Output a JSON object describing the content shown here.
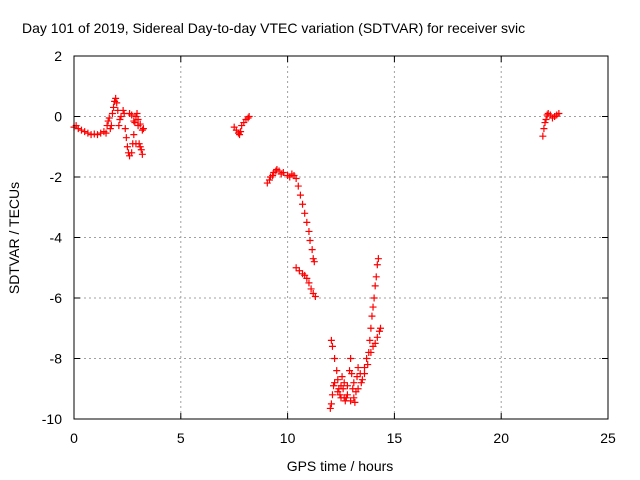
{
  "chart_data": {
    "type": "scatter",
    "title": "Day 101 of 2019, Sidereal Day-to-day VTEC variation (SDTVAR) for receiver svic",
    "xlabel": "GPS time / hours",
    "ylabel": "SDTVAR / TECUs",
    "xlim": [
      0,
      25
    ],
    "ylim": [
      -10,
      2
    ],
    "xticks": [
      "0",
      "5",
      "10",
      "15",
      "20",
      "25"
    ],
    "yticks": [
      "2",
      "0",
      "-2",
      "-4",
      "-6",
      "-8",
      "-10"
    ],
    "grid": true,
    "marker": "+",
    "color": "#ff0000",
    "segments": [
      {
        "name": "segment-1",
        "points": [
          [
            0.0,
            -0.35
          ],
          [
            0.1,
            -0.3
          ],
          [
            0.2,
            -0.4
          ],
          [
            0.35,
            -0.45
          ],
          [
            0.5,
            -0.5
          ],
          [
            0.65,
            -0.55
          ],
          [
            0.8,
            -0.6
          ],
          [
            0.95,
            -0.58
          ],
          [
            1.1,
            -0.6
          ],
          [
            1.25,
            -0.55
          ],
          [
            1.4,
            -0.5
          ],
          [
            1.5,
            -0.55
          ],
          [
            1.55,
            -0.3
          ],
          [
            1.6,
            -0.15
          ],
          [
            1.65,
            -0.05
          ],
          [
            1.7,
            -0.4
          ],
          [
            1.75,
            -0.3
          ],
          [
            1.8,
            0.1
          ],
          [
            1.85,
            0.3
          ],
          [
            1.9,
            0.5
          ],
          [
            1.95,
            0.6
          ],
          [
            2.0,
            0.45
          ],
          [
            2.05,
            0.2
          ],
          [
            2.1,
            -0.3
          ],
          [
            2.15,
            -0.1
          ],
          [
            2.2,
            0.0
          ],
          [
            2.3,
            0.2
          ],
          [
            2.35,
            0.1
          ],
          [
            2.4,
            -0.4
          ],
          [
            2.45,
            -0.7
          ],
          [
            2.5,
            -1.0
          ],
          [
            2.55,
            -1.2
          ],
          [
            2.6,
            -1.3
          ],
          [
            2.7,
            -1.2
          ],
          [
            2.75,
            -0.9
          ],
          [
            2.8,
            -0.6
          ],
          [
            2.85,
            -0.2
          ],
          [
            2.9,
            0.0
          ],
          [
            2.95,
            0.1
          ],
          [
            3.0,
            -0.1
          ],
          [
            3.05,
            -0.9
          ],
          [
            3.1,
            -1.0
          ],
          [
            3.15,
            -1.1
          ],
          [
            3.2,
            -1.25
          ],
          [
            3.25,
            -0.4
          ],
          [
            2.6,
            0.1
          ],
          [
            2.7,
            0.05
          ],
          [
            2.8,
            -0.15
          ],
          [
            2.9,
            -0.9
          ],
          [
            3.0,
            -0.3
          ],
          [
            3.1,
            -0.25
          ],
          [
            3.2,
            -0.45
          ]
        ]
      },
      {
        "name": "segment-2",
        "points": [
          [
            7.5,
            -0.35
          ],
          [
            7.6,
            -0.45
          ],
          [
            7.7,
            -0.55
          ],
          [
            7.75,
            -0.6
          ],
          [
            7.8,
            -0.5
          ],
          [
            7.85,
            -0.3
          ],
          [
            7.95,
            -0.2
          ],
          [
            8.05,
            -0.1
          ],
          [
            8.15,
            -0.05
          ],
          [
            8.2,
            0.0
          ]
        ]
      },
      {
        "name": "segment-3",
        "points": [
          [
            9.05,
            -2.2
          ],
          [
            9.15,
            -2.1
          ],
          [
            9.2,
            -2.0
          ],
          [
            9.3,
            -1.95
          ],
          [
            9.35,
            -1.85
          ],
          [
            9.45,
            -1.8
          ],
          [
            9.5,
            -1.75
          ],
          [
            9.6,
            -1.8
          ],
          [
            9.7,
            -1.9
          ],
          [
            9.8,
            -1.85
          ],
          [
            10.0,
            -1.95
          ],
          [
            10.1,
            -2.0
          ],
          [
            10.2,
            -1.9
          ],
          [
            10.3,
            -1.95
          ],
          [
            10.4,
            -2.05
          ],
          [
            10.5,
            -2.3
          ],
          [
            10.6,
            -2.6
          ],
          [
            10.7,
            -2.9
          ],
          [
            10.8,
            -3.2
          ],
          [
            10.9,
            -3.5
          ],
          [
            11.0,
            -3.8
          ],
          [
            11.05,
            -4.1
          ],
          [
            11.15,
            -4.4
          ],
          [
            11.2,
            -4.7
          ],
          [
            11.25,
            -4.8
          ],
          [
            10.4,
            -5.0
          ],
          [
            10.55,
            -5.1
          ],
          [
            10.7,
            -5.2
          ],
          [
            10.8,
            -5.25
          ],
          [
            10.9,
            -5.35
          ],
          [
            11.0,
            -5.5
          ],
          [
            11.1,
            -5.7
          ],
          [
            11.2,
            -5.85
          ],
          [
            11.3,
            -5.95
          ]
        ]
      },
      {
        "name": "segment-4",
        "points": [
          [
            12.0,
            -9.65
          ],
          [
            12.05,
            -9.5
          ],
          [
            12.1,
            -9.2
          ],
          [
            12.15,
            -8.9
          ],
          [
            12.05,
            -7.4
          ],
          [
            12.1,
            -7.6
          ],
          [
            12.2,
            -8.0
          ],
          [
            12.3,
            -8.4
          ],
          [
            12.35,
            -8.7
          ],
          [
            12.4,
            -9.0
          ],
          [
            12.45,
            -9.2
          ],
          [
            12.5,
            -8.9
          ],
          [
            12.55,
            -8.6
          ],
          [
            12.6,
            -9.0
          ],
          [
            12.65,
            -9.3
          ],
          [
            12.7,
            -9.4
          ],
          [
            12.75,
            -9.3
          ],
          [
            12.8,
            -8.9
          ],
          [
            12.9,
            -8.4
          ],
          [
            12.95,
            -8.0
          ],
          [
            13.0,
            -8.5
          ],
          [
            13.05,
            -9.0
          ],
          [
            13.1,
            -9.3
          ],
          [
            13.15,
            -9.45
          ],
          [
            13.2,
            -9.1
          ],
          [
            13.25,
            -8.6
          ],
          [
            13.3,
            -8.3
          ],
          [
            13.4,
            -8.5
          ],
          [
            13.5,
            -8.7
          ],
          [
            13.6,
            -8.3
          ],
          [
            13.7,
            -8.0
          ],
          [
            13.8,
            -7.8
          ],
          [
            13.85,
            -7.4
          ],
          [
            13.9,
            -7.0
          ],
          [
            13.95,
            -6.6
          ],
          [
            14.0,
            -6.3
          ],
          [
            14.05,
            -6.0
          ],
          [
            14.1,
            -5.6
          ],
          [
            14.15,
            -5.3
          ],
          [
            14.2,
            -4.9
          ],
          [
            14.25,
            -4.7
          ],
          [
            12.2,
            -8.8
          ],
          [
            12.35,
            -9.1
          ],
          [
            12.5,
            -9.3
          ],
          [
            12.65,
            -8.8
          ],
          [
            12.8,
            -9.2
          ],
          [
            12.95,
            -9.4
          ],
          [
            13.1,
            -8.8
          ],
          [
            13.3,
            -9.0
          ],
          [
            13.45,
            -8.8
          ],
          [
            13.6,
            -8.5
          ],
          [
            13.75,
            -8.2
          ],
          [
            13.9,
            -7.8
          ],
          [
            14.0,
            -7.6
          ],
          [
            14.1,
            -7.5
          ],
          [
            14.2,
            -7.3
          ],
          [
            14.3,
            -7.1
          ],
          [
            14.35,
            -7.0
          ]
        ]
      },
      {
        "name": "segment-5",
        "points": [
          [
            21.95,
            -0.65
          ],
          [
            22.0,
            -0.4
          ],
          [
            22.05,
            -0.2
          ],
          [
            22.1,
            -0.1
          ],
          [
            22.15,
            0.05
          ],
          [
            22.2,
            0.1
          ],
          [
            22.3,
            0.05
          ],
          [
            22.4,
            -0.05
          ],
          [
            22.5,
            0.0
          ],
          [
            22.6,
            0.05
          ],
          [
            22.7,
            0.1
          ]
        ]
      }
    ]
  }
}
